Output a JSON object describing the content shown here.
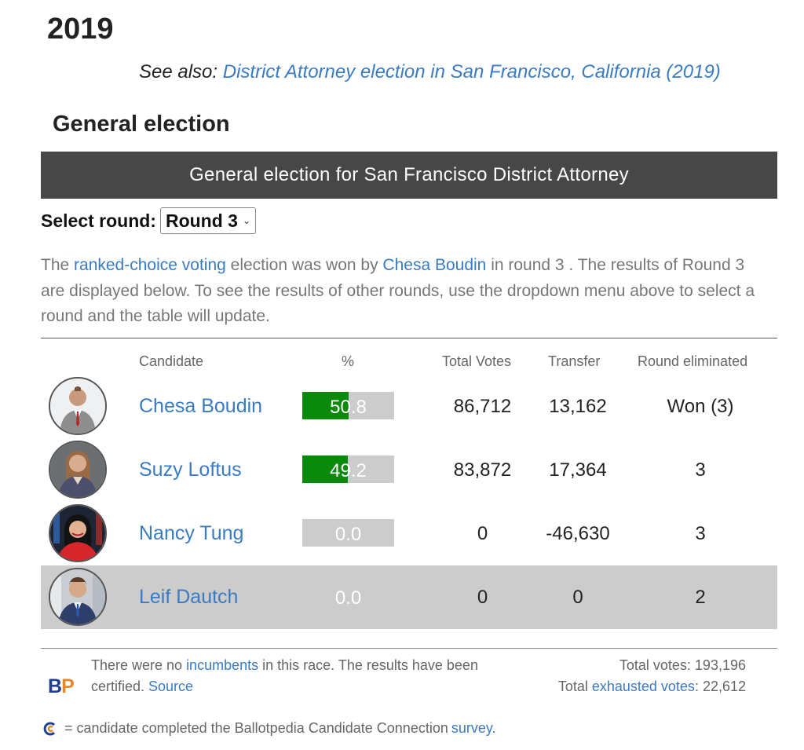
{
  "year": "2019",
  "see_also": {
    "prefix": "See also:",
    "link": "District Attorney election in San Francisco, California (2019)"
  },
  "section_title": "General election",
  "race_title": "General election for San Francisco District Attorney",
  "round_selector": {
    "label": "Select round:",
    "selected": "Round 3"
  },
  "summary": {
    "t1": "The ",
    "link1": "ranked-choice voting",
    "t2": " election was won by ",
    "link2": "Chesa Boudin",
    "t3": " in round 3 . The results of Round 3 are displayed below. To see the results of other rounds, use the dropdown menu above to select a round and the table will update."
  },
  "table": {
    "headers": {
      "candidate": "Candidate",
      "percent": "%",
      "total_votes": "Total Votes",
      "transfer": "Transfer",
      "round_eliminated": "Round eliminated"
    },
    "rows": [
      {
        "name": "Chesa Boudin",
        "percent": "50.8",
        "fill": 0.508,
        "total_votes": "86,712",
        "transfer": "13,162",
        "round": "Won (3)"
      },
      {
        "name": "Suzy Loftus",
        "percent": "49.2",
        "fill": 0.492,
        "total_votes": "83,872",
        "transfer": "17,364",
        "round": "3"
      },
      {
        "name": "Nancy Tung",
        "percent": "0.0",
        "fill": 0.0,
        "total_votes": "0",
        "transfer": "-46,630",
        "round": "3"
      },
      {
        "name": "Leif Dautch",
        "percent": "0.0",
        "fill": 0.0,
        "total_votes": "0",
        "transfer": "0",
        "round": "2"
      }
    ]
  },
  "footer": {
    "t1": "There were no ",
    "incumbents_link": "incumbents",
    "t2": " in this race. The results have been certified. ",
    "source_link": "Source",
    "total_votes": "Total votes: 193,196",
    "exhausted_prefix": "Total ",
    "exhausted_link": "exhausted votes",
    "exhausted_value": ": 22,612",
    "logo_b": "B",
    "logo_p": "P"
  },
  "cc_note": {
    "text": " = candidate completed the Ballotpedia Candidate Connection ",
    "link": "survey."
  },
  "colors": {
    "link": "#3a7bc2",
    "header_bg": "#474747",
    "bar_fill": "#0a8a0a",
    "bar_bg": "#cccccc",
    "logo_b": "#1f3f8f",
    "logo_p": "#e4882b"
  }
}
